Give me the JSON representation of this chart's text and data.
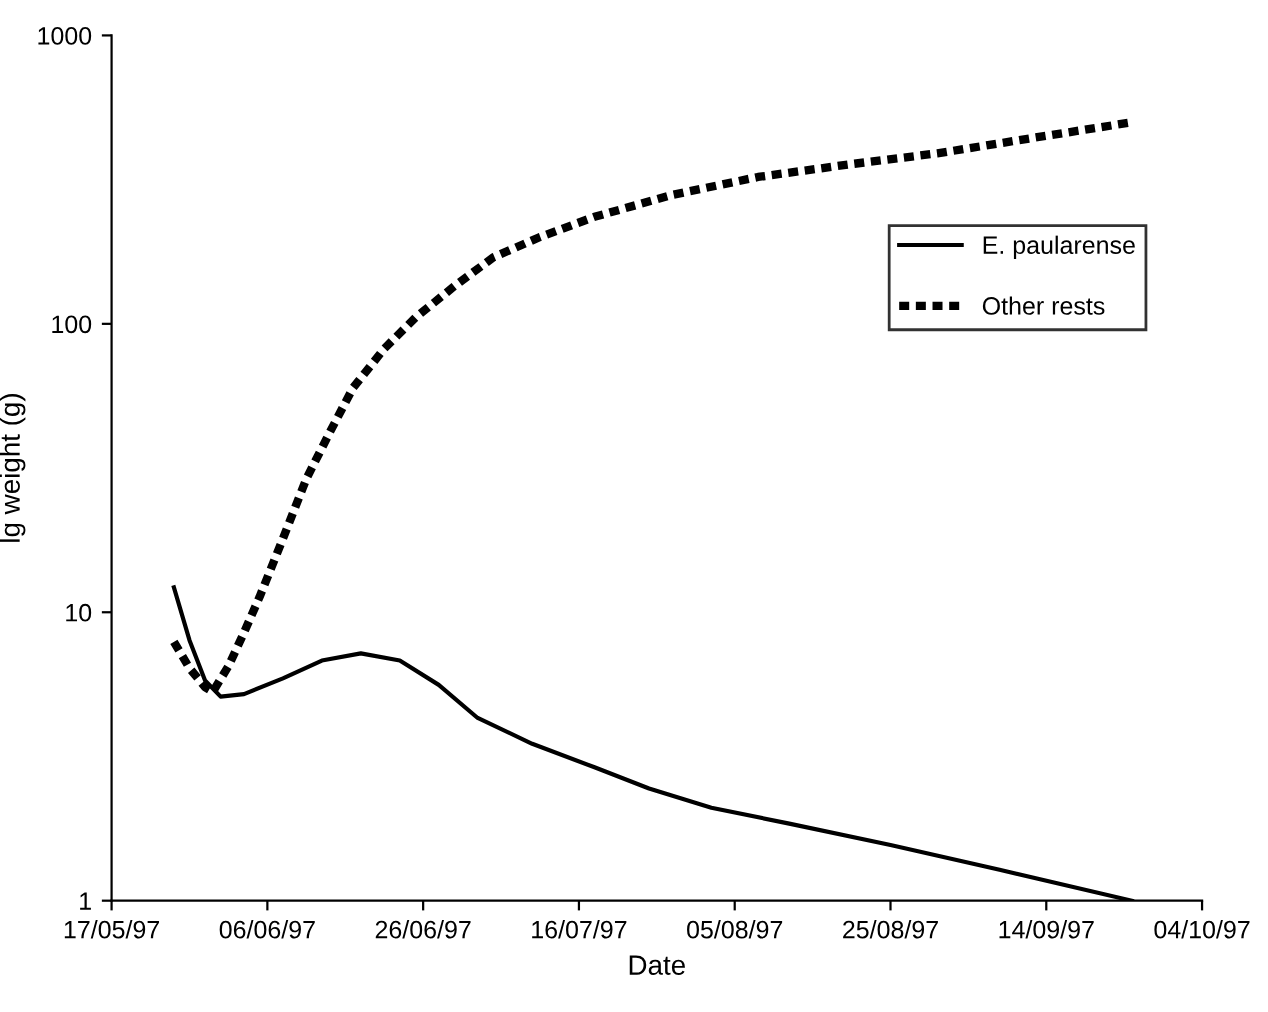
{
  "chart_data": {
    "type": "line",
    "xlabel": "Date",
    "ylabel": "lg weight (g)",
    "log": "y",
    "legend": "right",
    "grid": false,
    "ylim": [
      1,
      1000
    ],
    "yticks": [
      1,
      10,
      100,
      1000
    ],
    "xlim": [
      "1997-05-17",
      "1997-10-04"
    ],
    "xticks": [
      {
        "value": "1997-05-17",
        "label": "17/05/97"
      },
      {
        "value": "1997-06-06",
        "label": "06/06/97"
      },
      {
        "value": "1997-06-26",
        "label": "26/06/97"
      },
      {
        "value": "1997-07-16",
        "label": "16/07/97"
      },
      {
        "value": "1997-08-05",
        "label": "05/08/97"
      },
      {
        "value": "1997-08-25",
        "label": "25/08/97"
      },
      {
        "value": "1997-09-14",
        "label": "14/09/97"
      },
      {
        "value": "1997-10-04",
        "label": "04/10/97"
      }
    ],
    "series": [
      {
        "name": "E. paularense",
        "color": "#000000",
        "line_style": "solid",
        "x": [
          "1997-05-25",
          "1997-05-27",
          "1997-05-29",
          "1997-05-31",
          "1997-06-03",
          "1997-06-08",
          "1997-06-13",
          "1997-06-18",
          "1997-06-23",
          "1997-06-28",
          "1997-07-03",
          "1997-07-10",
          "1997-07-18",
          "1997-07-25",
          "1997-08-02",
          "1997-08-12",
          "1997-08-25",
          "1997-09-08",
          "1997-09-25"
        ],
        "values": [
          12.2,
          8.0,
          5.8,
          5.1,
          5.2,
          5.9,
          6.8,
          7.2,
          6.8,
          5.6,
          4.3,
          3.5,
          2.9,
          2.45,
          2.1,
          1.85,
          1.56,
          1.28,
          1.0
        ]
      },
      {
        "name": "Other rests",
        "color": "#000000",
        "line_style": "dotted",
        "x": [
          "1997-05-25",
          "1997-05-27",
          "1997-05-29",
          "1997-05-30",
          "1997-06-01",
          "1997-06-03",
          "1997-06-05",
          "1997-06-08",
          "1997-06-11",
          "1997-06-14",
          "1997-06-17",
          "1997-06-21",
          "1997-06-25",
          "1997-06-30",
          "1997-07-05",
          "1997-07-11",
          "1997-07-18",
          "1997-07-28",
          "1997-08-08",
          "1997-08-20",
          "1997-08-31",
          "1997-09-12",
          "1997-09-25"
        ],
        "values": [
          7.9,
          6.4,
          5.5,
          5.3,
          6.5,
          8.5,
          11.3,
          18,
          29,
          42,
          60,
          82,
          105,
          135,
          170,
          200,
          235,
          280,
          323,
          358,
          390,
          440,
          500
        ]
      }
    ]
  }
}
